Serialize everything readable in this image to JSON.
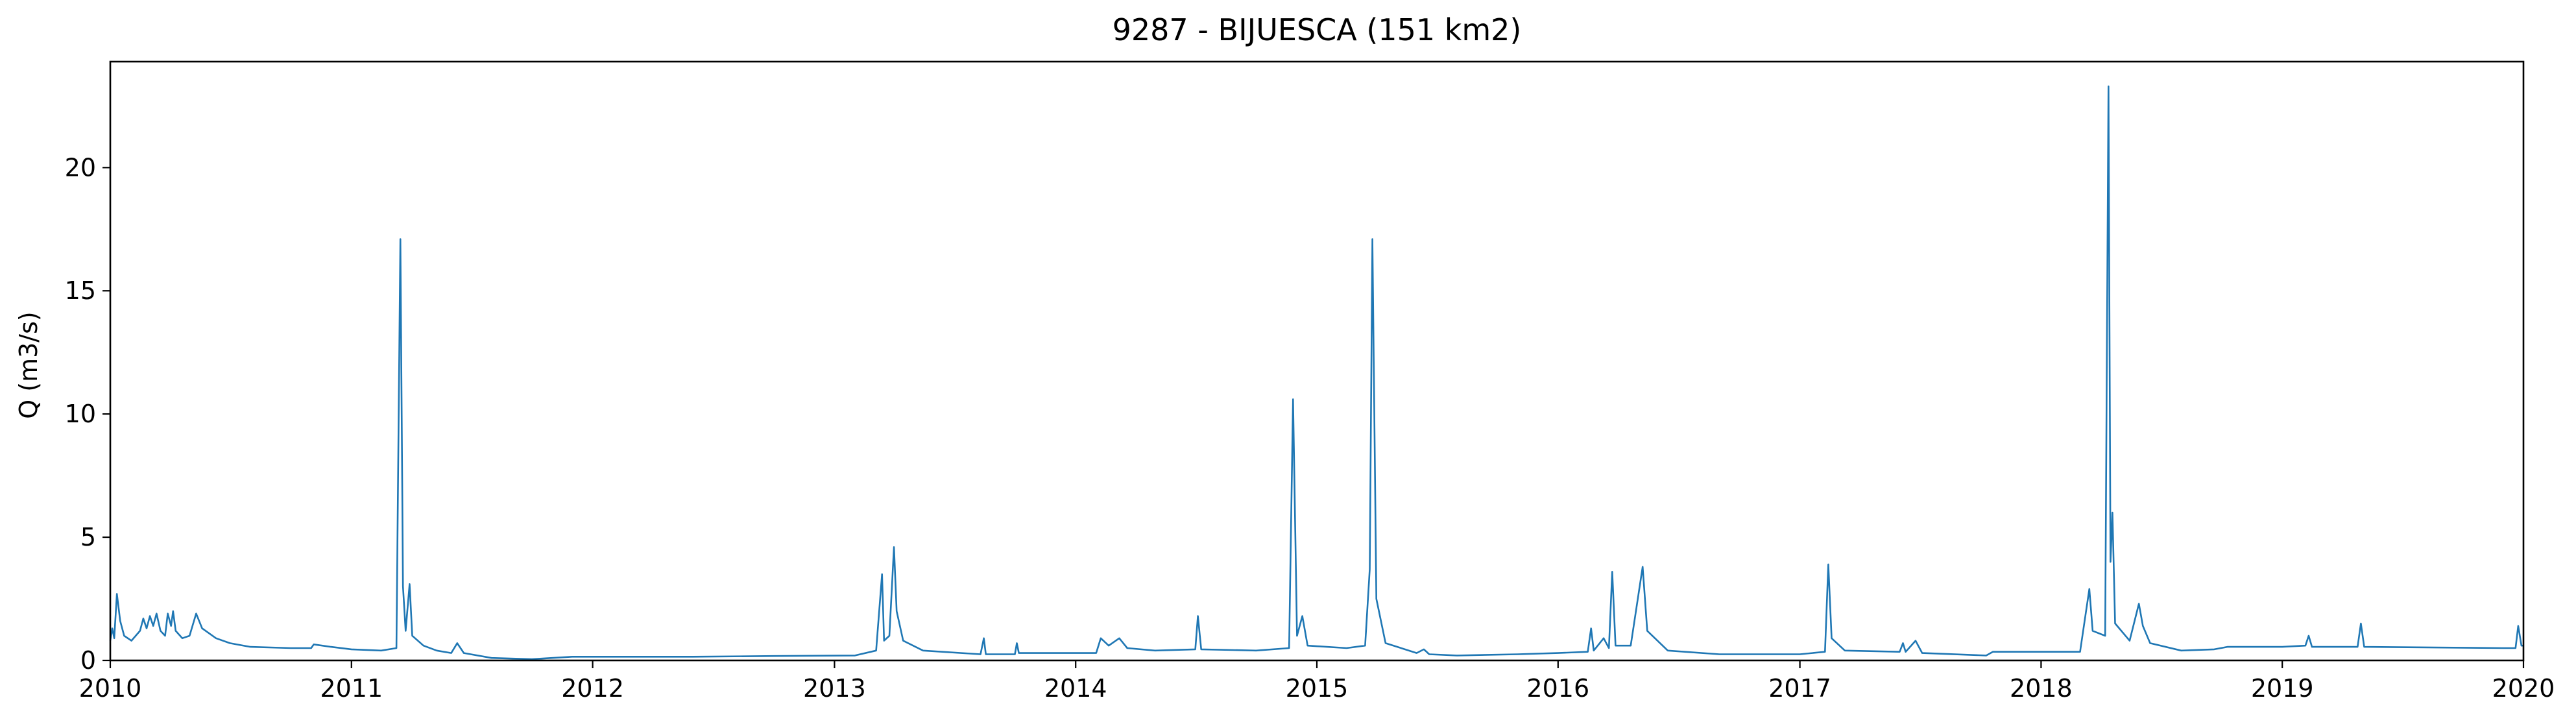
{
  "chart_data": {
    "type": "line",
    "title": "9287 - BIJUESCA (151 km2)",
    "xlabel": "",
    "ylabel": "Q (m3/s)",
    "xlim": [
      "2010-01-01",
      "2020-01-01"
    ],
    "ylim": [
      0,
      24.3
    ],
    "x_ticks": [
      "2010",
      "2011",
      "2012",
      "2013",
      "2014",
      "2015",
      "2016",
      "2017",
      "2018",
      "2019",
      "2020"
    ],
    "y_ticks": [
      0,
      5,
      10,
      15,
      20
    ],
    "grid": false,
    "legend": "none",
    "series": [
      {
        "color": "#1f77b4",
        "points": [
          [
            "2010-01-01",
            0.8
          ],
          [
            "2010-01-04",
            1.3
          ],
          [
            "2010-01-07",
            0.9
          ],
          [
            "2010-01-11",
            2.7
          ],
          [
            "2010-01-16",
            1.6
          ],
          [
            "2010-01-22",
            1.0
          ],
          [
            "2010-02-02",
            0.8
          ],
          [
            "2010-02-15",
            1.2
          ],
          [
            "2010-02-20",
            1.7
          ],
          [
            "2010-02-25",
            1.3
          ],
          [
            "2010-03-02",
            1.8
          ],
          [
            "2010-03-07",
            1.4
          ],
          [
            "2010-03-12",
            1.9
          ],
          [
            "2010-03-18",
            1.2
          ],
          [
            "2010-03-25",
            1.0
          ],
          [
            "2010-03-29",
            1.9
          ],
          [
            "2010-04-03",
            1.4
          ],
          [
            "2010-04-06",
            2.0
          ],
          [
            "2010-04-10",
            1.2
          ],
          [
            "2010-04-20",
            0.9
          ],
          [
            "2010-05-01",
            1.0
          ],
          [
            "2010-05-11",
            1.9
          ],
          [
            "2010-05-20",
            1.3
          ],
          [
            "2010-06-10",
            0.9
          ],
          [
            "2010-07-01",
            0.7
          ],
          [
            "2010-08-01",
            0.55
          ],
          [
            "2010-10-01",
            0.5
          ],
          [
            "2010-11-01",
            0.5
          ],
          [
            "2010-11-05",
            0.65
          ],
          [
            "2010-12-01",
            0.55
          ],
          [
            "2011-01-01",
            0.45
          ],
          [
            "2011-02-15",
            0.4
          ],
          [
            "2011-03-10",
            0.5
          ],
          [
            "2011-03-16",
            17.1
          ],
          [
            "2011-03-20",
            3.0
          ],
          [
            "2011-03-24",
            1.2
          ],
          [
            "2011-03-30",
            3.1
          ],
          [
            "2011-04-03",
            1.0
          ],
          [
            "2011-04-20",
            0.6
          ],
          [
            "2011-05-10",
            0.4
          ],
          [
            "2011-06-01",
            0.3
          ],
          [
            "2011-06-10",
            0.7
          ],
          [
            "2011-06-20",
            0.3
          ],
          [
            "2011-08-01",
            0.1
          ],
          [
            "2011-10-01",
            0.05
          ],
          [
            "2011-12-01",
            0.15
          ],
          [
            "2012-06-01",
            0.15
          ],
          [
            "2012-10-01",
            0.18
          ],
          [
            "2013-02-01",
            0.2
          ],
          [
            "2013-03-05",
            0.4
          ],
          [
            "2013-03-14",
            3.5
          ],
          [
            "2013-03-17",
            0.8
          ],
          [
            "2013-03-25",
            1.0
          ],
          [
            "2013-04-01",
            4.6
          ],
          [
            "2013-04-05",
            2.0
          ],
          [
            "2013-04-15",
            0.8
          ],
          [
            "2013-05-15",
            0.4
          ],
          [
            "2013-08-10",
            0.25
          ],
          [
            "2013-08-15",
            0.9
          ],
          [
            "2013-08-18",
            0.25
          ],
          [
            "2013-10-01",
            0.25
          ],
          [
            "2013-10-04",
            0.7
          ],
          [
            "2013-10-07",
            0.3
          ],
          [
            "2014-02-01",
            0.3
          ],
          [
            "2014-02-08",
            0.9
          ],
          [
            "2014-02-20",
            0.6
          ],
          [
            "2014-03-08",
            0.9
          ],
          [
            "2014-03-20",
            0.5
          ],
          [
            "2014-05-01",
            0.4
          ],
          [
            "2014-07-01",
            0.45
          ],
          [
            "2014-07-05",
            1.8
          ],
          [
            "2014-07-10",
            0.45
          ],
          [
            "2014-10-01",
            0.4
          ],
          [
            "2014-11-20",
            0.5
          ],
          [
            "2014-11-26",
            10.6
          ],
          [
            "2014-12-02",
            1.0
          ],
          [
            "2014-12-10",
            1.8
          ],
          [
            "2014-12-18",
            0.6
          ],
          [
            "2015-02-15",
            0.5
          ],
          [
            "2015-03-15",
            0.6
          ],
          [
            "2015-03-22",
            3.7
          ],
          [
            "2015-03-26",
            17.1
          ],
          [
            "2015-04-01",
            2.5
          ],
          [
            "2015-04-15",
            0.7
          ],
          [
            "2015-06-01",
            0.3
          ],
          [
            "2015-06-12",
            0.45
          ],
          [
            "2015-06-20",
            0.25
          ],
          [
            "2015-08-01",
            0.2
          ],
          [
            "2015-11-01",
            0.25
          ],
          [
            "2016-01-01",
            0.3
          ],
          [
            "2016-02-15",
            0.35
          ],
          [
            "2016-02-20",
            1.3
          ],
          [
            "2016-02-24",
            0.4
          ],
          [
            "2016-03-10",
            0.9
          ],
          [
            "2016-03-18",
            0.5
          ],
          [
            "2016-03-23",
            3.6
          ],
          [
            "2016-03-28",
            0.6
          ],
          [
            "2016-04-20",
            0.6
          ],
          [
            "2016-05-08",
            3.8
          ],
          [
            "2016-05-15",
            1.2
          ],
          [
            "2016-06-15",
            0.4
          ],
          [
            "2016-09-01",
            0.25
          ],
          [
            "2017-01-01",
            0.25
          ],
          [
            "2017-02-08",
            0.35
          ],
          [
            "2017-02-13",
            3.9
          ],
          [
            "2017-02-18",
            0.9
          ],
          [
            "2017-03-10",
            0.4
          ],
          [
            "2017-06-01",
            0.35
          ],
          [
            "2017-06-06",
            0.7
          ],
          [
            "2017-06-10",
            0.35
          ],
          [
            "2017-06-25",
            0.8
          ],
          [
            "2017-07-05",
            0.3
          ],
          [
            "2017-10-10",
            0.2
          ],
          [
            "2017-10-20",
            0.35
          ],
          [
            "2018-03-01",
            0.35
          ],
          [
            "2018-03-15",
            2.9
          ],
          [
            "2018-03-20",
            1.2
          ],
          [
            "2018-04-08",
            1.0
          ],
          [
            "2018-04-13",
            23.3
          ],
          [
            "2018-04-16",
            4.0
          ],
          [
            "2018-04-19",
            6.0
          ],
          [
            "2018-04-23",
            1.5
          ],
          [
            "2018-05-15",
            0.8
          ],
          [
            "2018-05-29",
            2.3
          ],
          [
            "2018-06-04",
            1.4
          ],
          [
            "2018-06-15",
            0.7
          ],
          [
            "2018-08-01",
            0.4
          ],
          [
            "2018-09-20",
            0.45
          ],
          [
            "2018-10-10",
            0.55
          ],
          [
            "2019-01-01",
            0.55
          ],
          [
            "2019-02-05",
            0.6
          ],
          [
            "2019-02-10",
            1.0
          ],
          [
            "2019-02-15",
            0.55
          ],
          [
            "2019-04-25",
            0.55
          ],
          [
            "2019-04-30",
            1.5
          ],
          [
            "2019-05-05",
            0.55
          ],
          [
            "2019-12-01",
            0.5
          ],
          [
            "2019-12-20",
            0.5
          ],
          [
            "2019-12-24",
            1.4
          ],
          [
            "2019-12-29",
            0.6
          ],
          [
            "2020-01-01",
            0.6
          ]
        ]
      }
    ]
  }
}
